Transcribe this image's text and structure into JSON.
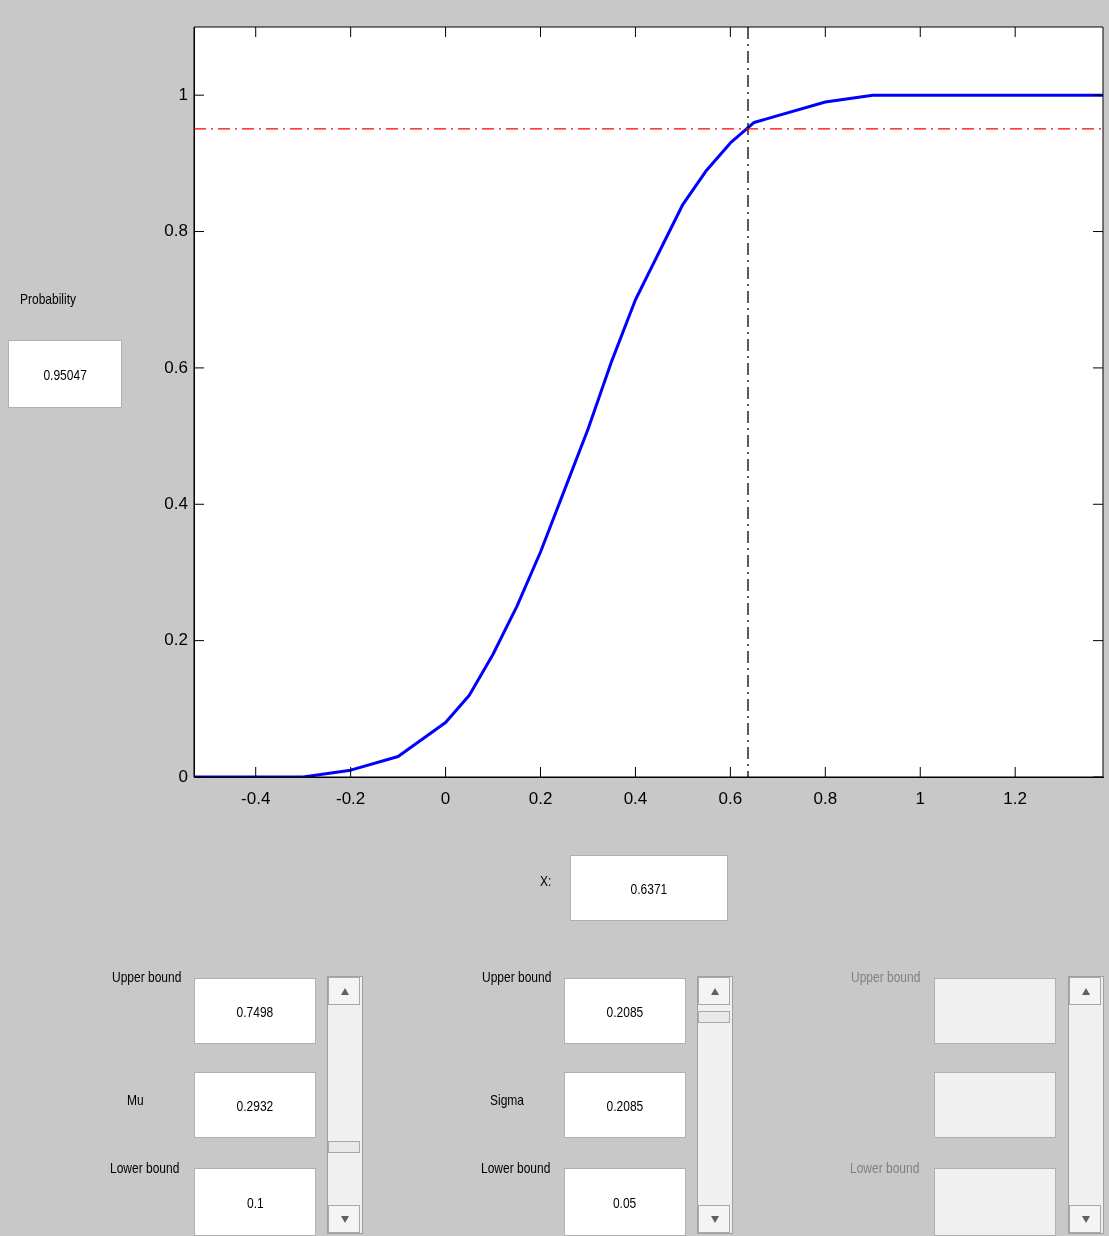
{
  "chart_data": {
    "type": "line",
    "x": [
      -0.53,
      -0.4,
      -0.3,
      -0.2,
      -0.1,
      0,
      0.05,
      0.1,
      0.15,
      0.2,
      0.25,
      0.3,
      0.35,
      0.4,
      0.45,
      0.5,
      0.55,
      0.6,
      0.65,
      0.7,
      0.8,
      0.9,
      1.0,
      1.385
    ],
    "series": [
      {
        "color": "#0000ff",
        "values": [
          0.0,
          0.0,
          0.0,
          0.01,
          0.03,
          0.08,
          0.12,
          0.18,
          0.25,
          0.33,
          0.42,
          0.51,
          0.61,
          0.7,
          0.77,
          0.84,
          0.89,
          0.93,
          0.96,
          0.97,
          0.99,
          1.0,
          1.0,
          1.0
        ]
      }
    ],
    "xlim": [
      -0.53,
      1.385
    ],
    "ylim": [
      0,
      1.1
    ],
    "xticks": [
      -0.4,
      -0.2,
      0,
      0.2,
      0.4,
      0.6,
      0.8,
      1,
      1.2
    ],
    "yticks": [
      0,
      0.2,
      0.4,
      0.6,
      0.8,
      1
    ],
    "ref_lines": [
      {
        "axis": "x",
        "value": 0.6371,
        "color": "#000000",
        "line_style": "dashdot"
      },
      {
        "axis": "y",
        "value": 0.95047,
        "color": "#ff0000",
        "line_style": "dashdot"
      }
    ],
    "marker": "none",
    "line_style": "solid",
    "grid": false,
    "legend": false,
    "annotations": [
      "Probability",
      "0.95047",
      "X:",
      "0.6371",
      "Upper bound",
      "0.7498",
      "Mu",
      "0.2932",
      "Lower bound",
      "0.1",
      "Upper bound",
      "0.2085",
      "Sigma",
      "0.2085",
      "Lower bound",
      "0.05",
      "Upper bound",
      "Lower bound"
    ]
  }
}
